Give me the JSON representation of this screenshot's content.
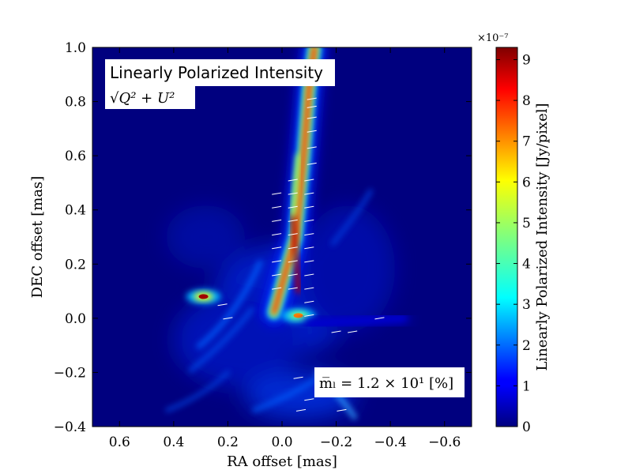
{
  "chart_data": {
    "type": "heatmap",
    "title": "",
    "xlabel": "RA offset [mas]",
    "ylabel": "DEC offset [mas]",
    "xlim": [
      0.7,
      -0.7
    ],
    "ylim": [
      -0.4,
      1.0
    ],
    "x_ticks": [
      0.6,
      0.4,
      0.2,
      0.0,
      -0.2,
      -0.4,
      -0.6
    ],
    "x_tick_labels": [
      "0.6",
      "0.4",
      "0.2",
      "0.0",
      "−0.2",
      "−0.4",
      "−0.6"
    ],
    "y_ticks": [
      -0.4,
      -0.2,
      0.0,
      0.2,
      0.4,
      0.6,
      0.8,
      1.0
    ],
    "y_tick_labels": [
      "−0.4",
      "−0.2",
      "0.0",
      "0.2",
      "0.4",
      "0.6",
      "0.8",
      "1.0"
    ],
    "grid": false,
    "annotations": {
      "label_line1": "Linearly Polarized Intensity",
      "label_line2": "√Q² + U²",
      "mean_label": "m̅ₗ =  1.2 × 10¹ [%]"
    },
    "colorbar": {
      "label": "Linearly Polarized Intensity [Jy/pixel]",
      "range": [
        0,
        9.3
      ],
      "ticks": [
        0,
        1,
        2,
        3,
        4,
        5,
        6,
        7,
        8,
        9
      ],
      "tick_labels": [
        "0",
        "1",
        "2",
        "3",
        "4",
        "5",
        "6",
        "7",
        "8",
        "9"
      ],
      "multiplier": "×10⁻⁷",
      "colormap": "jet"
    },
    "features": [
      {
        "name": "jet",
        "x": [
          0.03,
          -0.05,
          -0.08,
          -0.1,
          -0.12
        ],
        "y": [
          0.02,
          0.3,
          0.6,
          0.85,
          1.0
        ],
        "peak": 9.0
      },
      {
        "name": "knot-east",
        "x": 0.29,
        "y": 0.08,
        "peak": 9.0
      },
      {
        "name": "knot-core",
        "x": -0.06,
        "y": 0.01,
        "peak": 7.0
      },
      {
        "name": "west-arm",
        "x": [
          -0.1,
          -0.45
        ],
        "y": [
          -0.02,
          0.0
        ],
        "peak": 2.5
      }
    ],
    "evpa_vectors": [
      {
        "x": -0.11,
        "y": 0.81
      },
      {
        "x": -0.11,
        "y": 0.78
      },
      {
        "x": -0.11,
        "y": 0.74
      },
      {
        "x": -0.11,
        "y": 0.69
      },
      {
        "x": -0.11,
        "y": 0.63
      },
      {
        "x": -0.11,
        "y": 0.57
      },
      {
        "x": -0.1,
        "y": 0.51
      },
      {
        "x": -0.04,
        "y": 0.51
      },
      {
        "x": -0.1,
        "y": 0.46
      },
      {
        "x": -0.04,
        "y": 0.46
      },
      {
        "x": 0.02,
        "y": 0.46
      },
      {
        "x": -0.1,
        "y": 0.41
      },
      {
        "x": -0.04,
        "y": 0.41
      },
      {
        "x": 0.02,
        "y": 0.41
      },
      {
        "x": -0.1,
        "y": 0.36
      },
      {
        "x": -0.04,
        "y": 0.36
      },
      {
        "x": 0.02,
        "y": 0.36
      },
      {
        "x": -0.1,
        "y": 0.31
      },
      {
        "x": -0.04,
        "y": 0.31
      },
      {
        "x": 0.02,
        "y": 0.31
      },
      {
        "x": -0.1,
        "y": 0.26
      },
      {
        "x": -0.04,
        "y": 0.26
      },
      {
        "x": 0.02,
        "y": 0.26
      },
      {
        "x": -0.1,
        "y": 0.21
      },
      {
        "x": -0.04,
        "y": 0.21
      },
      {
        "x": 0.02,
        "y": 0.21
      },
      {
        "x": -0.1,
        "y": 0.16
      },
      {
        "x": -0.04,
        "y": 0.16
      },
      {
        "x": 0.02,
        "y": 0.16
      },
      {
        "x": -0.1,
        "y": 0.11
      },
      {
        "x": -0.04,
        "y": 0.11
      },
      {
        "x": 0.02,
        "y": 0.11
      },
      {
        "x": -0.1,
        "y": 0.06
      },
      {
        "x": -0.1,
        "y": 0.01
      },
      {
        "x": -0.2,
        "y": -0.05
      },
      {
        "x": -0.26,
        "y": -0.05
      },
      {
        "x": -0.36,
        "y": 0.0
      },
      {
        "x": 0.2,
        "y": 0.0
      },
      {
        "x": 0.22,
        "y": 0.05
      },
      {
        "x": -0.06,
        "y": -0.22
      },
      {
        "x": -0.1,
        "y": -0.3
      },
      {
        "x": -0.07,
        "y": -0.34
      },
      {
        "x": -0.22,
        "y": -0.34
      }
    ],
    "colors": {
      "background": "#00007f",
      "vector": "#ffffff",
      "label_box": "#ffffff"
    }
  }
}
